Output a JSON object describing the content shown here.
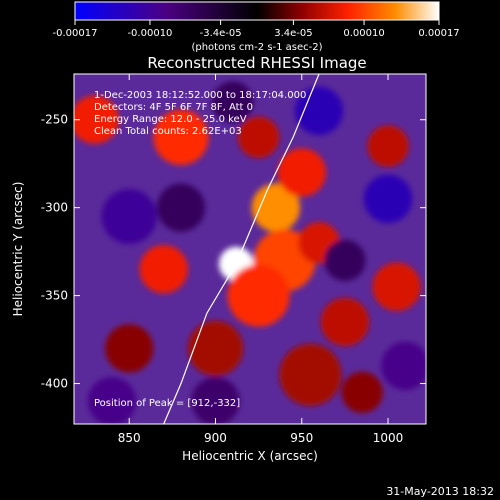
{
  "colorbar": {
    "tick_labels": [
      "-0.00017",
      "-0.00010",
      "-3.4e-05",
      "3.4e-05",
      "0.00010",
      "0.00017"
    ],
    "tick_values": [
      -0.00017,
      -0.0001,
      -3.4e-05,
      3.4e-05,
      0.0001,
      0.00017
    ],
    "range": [
      -0.00017,
      0.00017
    ],
    "units": "(photons cm-2 s-1 asec-2)",
    "colormap": [
      "#0000ff",
      "#4b0082",
      "#000000",
      "#8b0000",
      "#ff2000",
      "#ff8c00",
      "#ffffff"
    ]
  },
  "chart_data": {
    "type": "heatmap",
    "title": "Reconstructed RHESSI Image",
    "xlabel": "Heliocentric X (arcsec)",
    "ylabel": "Heliocentric Y (arcsec)",
    "xlim": [
      818,
      1022
    ],
    "ylim": [
      -423,
      -224
    ],
    "x_ticks": [
      850,
      900,
      950,
      1000
    ],
    "x_tick_labels": [
      "850",
      "900",
      "950",
      "1000"
    ],
    "y_ticks": [
      -250,
      -300,
      -350,
      -400
    ],
    "y_tick_labels": [
      "-250",
      "-300",
      "-350",
      "-400"
    ],
    "annotations": [
      "1-Dec-2003 18:12:52.000 to 18:17:04.000",
      "Detectors: 4F 5F 6F 7F 8F, Att 0",
      "Energy Range: 12.0 - 25.0 keV",
      "Clean    Total counts: 2.62E+03"
    ],
    "peak_label": "Position of Peak = [912,-332]",
    "peak": [
      912,
      -332
    ],
    "limb_points": [
      [
        870,
        -423
      ],
      [
        880,
        -400
      ],
      [
        895,
        -360
      ],
      [
        912,
        -332
      ],
      [
        930,
        -290
      ],
      [
        945,
        -260
      ],
      [
        960,
        -224
      ]
    ],
    "sources": [
      {
        "x": 912,
        "y": -332,
        "v": 0.00017,
        "r": 10
      },
      {
        "x": 935,
        "y": -300,
        "v": 0.00013,
        "r": 14
      },
      {
        "x": 940,
        "y": -330,
        "v": 0.0001,
        "r": 18
      },
      {
        "x": 925,
        "y": -350,
        "v": 9e-05,
        "r": 18
      },
      {
        "x": 950,
        "y": -280,
        "v": 8e-05,
        "r": 14
      },
      {
        "x": 870,
        "y": -335,
        "v": 8e-05,
        "r": 14
      },
      {
        "x": 830,
        "y": -250,
        "v": 8e-05,
        "r": 14
      },
      {
        "x": 880,
        "y": -260,
        "v": 9e-05,
        "r": 16
      },
      {
        "x": 925,
        "y": -260,
        "v": 6e-05,
        "r": 12
      },
      {
        "x": 960,
        "y": -320,
        "v": 7e-05,
        "r": 12
      },
      {
        "x": 1005,
        "y": -345,
        "v": 7e-05,
        "r": 14
      },
      {
        "x": 975,
        "y": -365,
        "v": 6e-05,
        "r": 14
      },
      {
        "x": 900,
        "y": -380,
        "v": 5e-05,
        "r": 16
      },
      {
        "x": 955,
        "y": -395,
        "v": 5e-05,
        "r": 18
      },
      {
        "x": 850,
        "y": -380,
        "v": 4e-05,
        "r": 14
      },
      {
        "x": 1000,
        "y": -265,
        "v": 6e-05,
        "r": 12
      },
      {
        "x": 985,
        "y": -405,
        "v": 4e-05,
        "r": 12
      },
      {
        "x": 960,
        "y": -245,
        "v": -0.00012,
        "r": 14
      },
      {
        "x": 1000,
        "y": -295,
        "v": -0.00012,
        "r": 14
      },
      {
        "x": 850,
        "y": -305,
        "v": -0.0001,
        "r": 16
      },
      {
        "x": 1010,
        "y": -390,
        "v": -9e-05,
        "r": 14
      },
      {
        "x": 840,
        "y": -410,
        "v": -9e-05,
        "r": 14
      },
      {
        "x": 880,
        "y": -300,
        "v": -6e-05,
        "r": 14
      },
      {
        "x": 900,
        "y": -410,
        "v": -7e-05,
        "r": 14
      },
      {
        "x": 910,
        "y": -240,
        "v": -6e-05,
        "r": 12
      },
      {
        "x": 975,
        "y": -330,
        "v": -6e-05,
        "r": 12
      }
    ]
  },
  "footer": {
    "timestamp": "31-May-2013 18:32"
  }
}
